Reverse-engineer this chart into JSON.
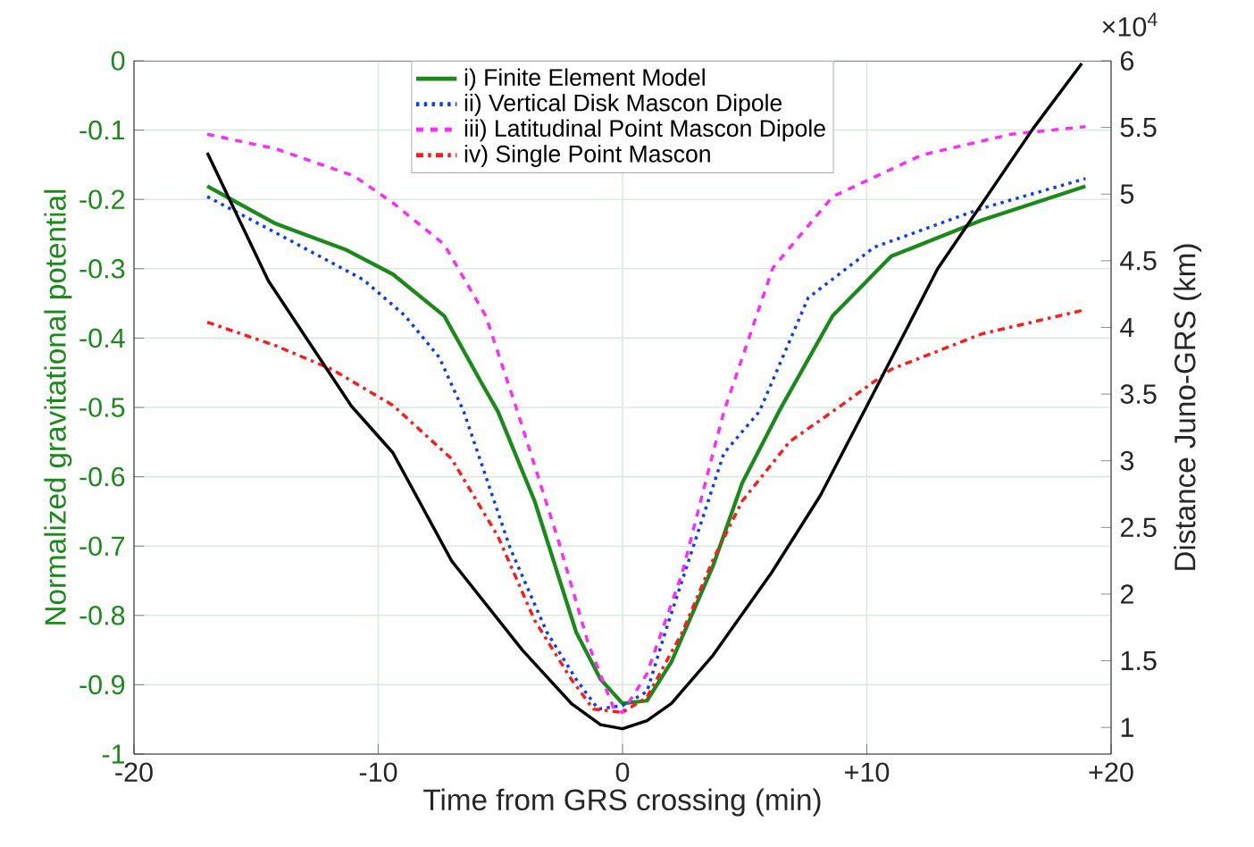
{
  "chart_data": {
    "type": "line",
    "xlabel": "Time from GRS crossing (min)",
    "ylabel": "Normalized gravitational potential",
    "y2label": "Distance Juno-GRS (km)",
    "xlim": [
      -20,
      20
    ],
    "xticks": [
      -20,
      -10,
      0,
      {
        "value": 10,
        "label": "+10"
      },
      {
        "value": 20,
        "label": "+20"
      }
    ],
    "ylim": [
      -1,
      0
    ],
    "yticks": [
      -1,
      -0.9,
      -0.8,
      -0.7,
      -0.6,
      -0.5,
      -0.4,
      -0.3,
      -0.2,
      -0.1,
      0
    ],
    "y2lim": [
      0.8,
      6
    ],
    "y2ticks": [
      1,
      1.5,
      2,
      2.5,
      3,
      3.5,
      4,
      4.5,
      5,
      5.5,
      6
    ],
    "grid": true,
    "legend": "top",
    "annotations": [
      "×10$^{4}$"
    ],
    "series": [
      {
        "name": "i) Finite Element Model",
        "color": "#1a8a1a",
        "line_style": "solid",
        "x": [
          -17,
          -14.2,
          -11.3,
          -9.4,
          -7.3,
          -5.8,
          -5.1,
          -3.6,
          -1.9,
          -0.9,
          0,
          1,
          2,
          3.7,
          4.9,
          6.4,
          8.6,
          11,
          14.7,
          18.95
        ],
        "values": [
          -0.181,
          -0.235,
          -0.273,
          -0.308,
          -0.368,
          -0.463,
          -0.506,
          -0.635,
          -0.824,
          -0.892,
          -0.927,
          -0.923,
          -0.867,
          -0.729,
          -0.609,
          -0.506,
          -0.368,
          -0.282,
          -0.23,
          -0.181
        ]
      },
      {
        "name": "ii) Vertical Disk Mascon Dipole",
        "color": "#0a3cff",
        "line_style": "dotted",
        "x": [
          -17,
          -14.2,
          -10.6,
          -8.9,
          -7.5,
          -6.5,
          -4.6,
          -3.1,
          -1.9,
          -1,
          0,
          1,
          1.75,
          2.95,
          4.15,
          5.6,
          7.6,
          10.3,
          14.7,
          18.95
        ],
        "values": [
          -0.196,
          -0.248,
          -0.316,
          -0.368,
          -0.428,
          -0.506,
          -0.703,
          -0.824,
          -0.892,
          -0.935,
          -0.93,
          -0.91,
          -0.824,
          -0.695,
          -0.566,
          -0.506,
          -0.342,
          -0.269,
          -0.213,
          -0.17
        ]
      },
      {
        "name": "iii) Latitudinal Point Mascon Dipole",
        "color": "#ff28ff",
        "line_style": "dashed",
        "x": [
          -17,
          -14.2,
          -11,
          -9.4,
          -7.3,
          -5.6,
          -4.3,
          -2.6,
          -1.4,
          -0.35,
          0,
          1,
          2.45,
          3.7,
          4.15,
          6.15,
          8.6,
          12.25,
          15.9,
          18.95
        ],
        "values": [
          -0.106,
          -0.127,
          -0.166,
          -0.205,
          -0.265,
          -0.368,
          -0.506,
          -0.695,
          -0.841,
          -0.935,
          -0.94,
          -0.884,
          -0.738,
          -0.566,
          -0.506,
          -0.299,
          -0.196,
          -0.136,
          -0.106,
          -0.095
        ]
      },
      {
        "name": "iv) Single Point Mascon",
        "color": "#ff1a1a",
        "line_style": "dashdot",
        "x": [
          -17,
          -14.2,
          -11.9,
          -9.4,
          -7,
          -5.1,
          -3.6,
          -2.1,
          -1.2,
          0,
          1,
          2.45,
          3.7,
          4.9,
          6.85,
          8.6,
          11,
          14.7,
          18.95
        ],
        "values": [
          -0.377,
          -0.411,
          -0.445,
          -0.497,
          -0.574,
          -0.686,
          -0.807,
          -0.892,
          -0.935,
          -0.94,
          -0.918,
          -0.824,
          -0.72,
          -0.635,
          -0.549,
          -0.506,
          -0.445,
          -0.394,
          -0.359
        ]
      },
      {
        "color": "#000000",
        "line_style": "solid",
        "axis": "y2",
        "x": [
          -17,
          -14.5,
          -11.1,
          -9.4,
          -7,
          -4.1,
          -2.1,
          -0.9,
          0,
          1,
          2,
          3.7,
          6.1,
          8.1,
          10,
          12.9,
          16.8,
          18.8
        ],
        "values": [
          5.31,
          4.35,
          3.41,
          3.06,
          2.25,
          1.58,
          1.18,
          1.02,
          0.99,
          1.05,
          1.18,
          1.54,
          2.16,
          2.74,
          3.41,
          4.44,
          5.49,
          5.98
        ]
      }
    ]
  }
}
